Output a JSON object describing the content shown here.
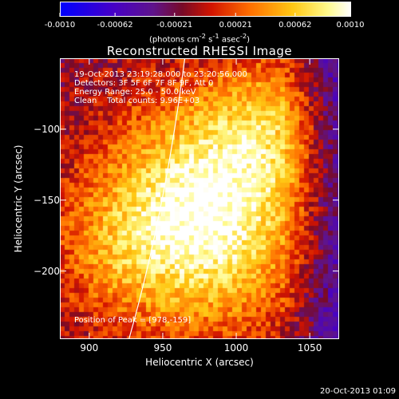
{
  "colors": {
    "background": "#000000",
    "foreground": "#ffffff",
    "limb": "#ffffff"
  },
  "colorbar": {
    "ticks": [
      "-0.0010",
      "-0.00062",
      "-0.00021",
      "0.00021",
      "0.00062",
      "0.0010"
    ],
    "tick_values": [
      -0.001,
      -0.00062,
      -0.00021,
      0.00021,
      0.00062,
      0.001
    ],
    "range": [
      -0.001,
      0.001
    ],
    "units_html": "(photons cm<sup>-2</sup> s<sup>-1</sup> asec<sup>-2</sup>)",
    "colormap": "blue-purple-red-orange-yellow-white"
  },
  "chart_data": {
    "type": "heatmap",
    "title": "Reconstructed RHESSI Image",
    "xlabel": "Heliocentric X (arcsec)",
    "ylabel": "Heliocentric Y (arcsec)",
    "xlim": [
      880,
      1070
    ],
    "ylim": [
      -248,
      -50
    ],
    "xticks": [
      900,
      950,
      1000,
      1050
    ],
    "yticks": [
      -100,
      -150,
      -200
    ],
    "peak": {
      "x": 978,
      "y": -159
    },
    "limb": {
      "x_top": 965,
      "x_bottom": 927
    },
    "annotations": {
      "time_range": "19-Oct-2013 23:19:28.000 to 23:20:56.000",
      "detectors": "Detectors: 3F 5F 6F 7F 8F 9F, Att 0",
      "energy": "Energy Range: 25.0 - 50.0 keV",
      "clean": "Clean    Total counts: 9.96E+03",
      "peak_label": "Position of Peak = [978,-159]"
    }
  },
  "footer": {
    "timestamp": "20-Oct-2013 01:09"
  }
}
